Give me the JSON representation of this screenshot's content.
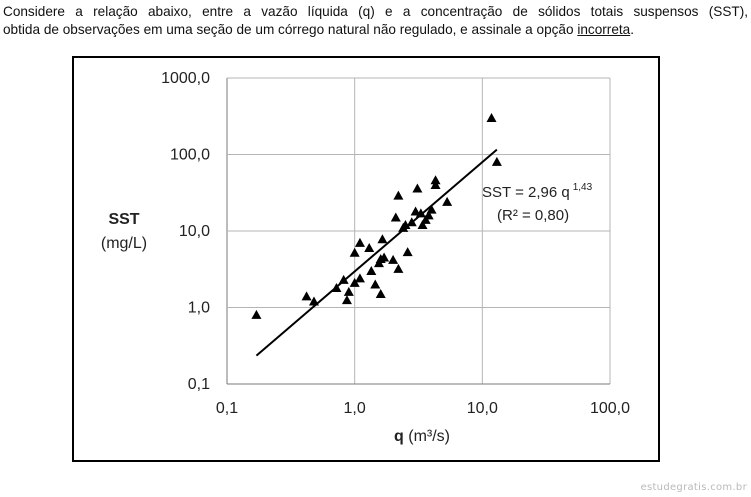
{
  "question": {
    "line1": "Considere a relação abaixo, entre a vazão líquida (q) e a concentração de sólidos totais suspensos (SST),",
    "line2_before": "obtida de observações em uma seção de um córrego natural não regulado, e assinale a opção ",
    "line2_underlined": "incorreta",
    "line2_after": "."
  },
  "watermark": "estudegratis.com.br",
  "chart_data": {
    "type": "scatter",
    "x_scale": "log",
    "y_scale": "log",
    "xlim": [
      0.1,
      100
    ],
    "ylim": [
      0.1,
      1000
    ],
    "grid": true,
    "legend": "none",
    "x_ticks": [
      0.1,
      1,
      10,
      100
    ],
    "x_tick_labels": [
      "0,1",
      "1,0",
      "10,0",
      "100,0"
    ],
    "y_ticks": [
      0.1,
      1,
      10,
      100,
      1000
    ],
    "y_tick_labels": [
      "0,1",
      "1,0",
      "10,0",
      "100,0",
      "1000,0"
    ],
    "xlabel": {
      "symbol": "q",
      "unit": "(m³/s)"
    },
    "ylabel": {
      "line1": "SST",
      "line2": "(mg/L)"
    },
    "annotation": {
      "line1_main": "SST = 2,96 q",
      "line1_exp": "1,43",
      "line2": "(R² = 0,80)"
    },
    "fit": {
      "a": 2.96,
      "b": 1.43,
      "x_range": [
        0.17,
        13
      ]
    },
    "marker": "triangle",
    "marker_color": "#000000",
    "points": [
      {
        "x": 0.17,
        "y": 0.8
      },
      {
        "x": 0.42,
        "y": 1.4
      },
      {
        "x": 0.48,
        "y": 1.2
      },
      {
        "x": 0.72,
        "y": 1.8
      },
      {
        "x": 0.82,
        "y": 2.3
      },
      {
        "x": 0.87,
        "y": 1.25
      },
      {
        "x": 0.9,
        "y": 1.6
      },
      {
        "x": 1.0,
        "y": 2.1
      },
      {
        "x": 1.0,
        "y": 5.2
      },
      {
        "x": 1.1,
        "y": 7.0
      },
      {
        "x": 1.1,
        "y": 2.4
      },
      {
        "x": 1.3,
        "y": 6.0
      },
      {
        "x": 1.35,
        "y": 3.0
      },
      {
        "x": 1.45,
        "y": 2.0
      },
      {
        "x": 1.55,
        "y": 3.8
      },
      {
        "x": 1.6,
        "y": 4.3
      },
      {
        "x": 1.6,
        "y": 1.5
      },
      {
        "x": 1.65,
        "y": 7.8
      },
      {
        "x": 1.7,
        "y": 4.5
      },
      {
        "x": 2.0,
        "y": 4.2
      },
      {
        "x": 2.1,
        "y": 15.0
      },
      {
        "x": 2.2,
        "y": 3.2
      },
      {
        "x": 2.2,
        "y": 29.0
      },
      {
        "x": 2.4,
        "y": 11.0
      },
      {
        "x": 2.5,
        "y": 12.0
      },
      {
        "x": 2.6,
        "y": 5.3
      },
      {
        "x": 2.8,
        "y": 13.0
      },
      {
        "x": 3.0,
        "y": 18.0
      },
      {
        "x": 3.1,
        "y": 36.0
      },
      {
        "x": 3.3,
        "y": 17.0
      },
      {
        "x": 3.4,
        "y": 12.0
      },
      {
        "x": 3.6,
        "y": 14.0
      },
      {
        "x": 3.8,
        "y": 16.0
      },
      {
        "x": 4.0,
        "y": 19.0
      },
      {
        "x": 4.3,
        "y": 40.0
      },
      {
        "x": 4.3,
        "y": 46.0
      },
      {
        "x": 5.3,
        "y": 24.0
      },
      {
        "x": 11.8,
        "y": 300.0
      },
      {
        "x": 13.0,
        "y": 80.0
      }
    ]
  }
}
